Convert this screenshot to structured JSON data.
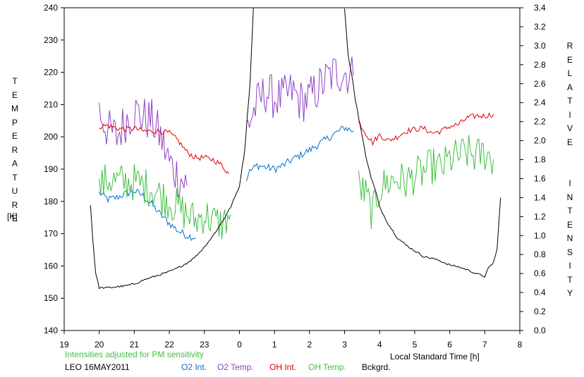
{
  "chart_data": {
    "type": "line",
    "left_axis": {
      "label": "TEMPERATURE",
      "unit": "[K]",
      "range": [
        140,
        240
      ],
      "ticks": [
        140,
        150,
        160,
        170,
        180,
        190,
        200,
        210,
        220,
        230,
        240
      ]
    },
    "right_axis": {
      "label": "RELATIVE INTENSITY",
      "range": [
        0.0,
        3.4
      ],
      "ticks": [
        "0.0",
        "0.2",
        "0.4",
        "0.6",
        "0.8",
        "1.0",
        "1.2",
        "1.4",
        "1.6",
        "1.8",
        "2.0",
        "2.2",
        "2.4",
        "2.6",
        "2.8",
        "3.0",
        "3.2",
        "3.4"
      ]
    },
    "x_axis": {
      "label": "Local Standard Time [h]",
      "range": [
        19,
        32
      ],
      "ticks": [
        "19",
        "20",
        "21",
        "22",
        "23",
        "0",
        "1",
        "2",
        "3",
        "4",
        "5",
        "6",
        "7",
        "8"
      ]
    },
    "note": "Intensities adjusted for PM sensitivity",
    "site_date": "LEO 16MAY2011",
    "grid": false,
    "legend_position": "bottom",
    "series": [
      {
        "name": "O2 Int.",
        "color": "#0070d0",
        "axis": "right",
        "segments": [
          {
            "x": [
              20.0,
              20.25,
              20.5,
              20.75,
              21.0,
              21.25,
              21.5,
              21.75,
              22.0,
              22.25,
              22.5,
              22.75
            ],
            "y": [
              1.45,
              1.38,
              1.4,
              1.44,
              1.47,
              1.42,
              1.33,
              1.22,
              1.13,
              1.05,
              1.0,
              0.98
            ]
          },
          {
            "x": [
              24.2,
              24.25,
              24.5,
              24.75,
              25.0,
              25.25,
              25.5,
              25.75,
              26.0,
              26.25,
              26.5,
              26.75,
              27.0,
              27.25
            ],
            "y": [
              1.58,
              1.66,
              1.74,
              1.72,
              1.7,
              1.74,
              1.8,
              1.85,
              1.9,
              1.96,
              2.02,
              2.08,
              2.14,
              2.1
            ]
          }
        ]
      },
      {
        "name": "O2 Temp.",
        "color": "#9040c8",
        "axis": "left",
        "segments": [
          {
            "x": [
              20.0,
              20.25,
              20.5,
              20.75,
              21.0,
              21.25,
              21.5,
              21.75,
              22.0,
              22.25,
              22.5
            ],
            "y": [
              208,
              202,
              200,
              205,
              208,
              206,
              205,
              200,
              192,
              188,
              185
            ]
          },
          {
            "x": [
              24.2,
              24.5,
              24.75,
              25.0,
              25.25,
              25.5,
              25.75,
              26.0,
              26.25,
              26.5,
              26.75,
              27.0,
              27.25
            ],
            "y": [
              203,
              210,
              214,
              212,
              212,
              214,
              211,
              212,
              215,
              218,
              220,
              220,
              219
            ]
          }
        ]
      },
      {
        "name": "OH Int.",
        "color": "#e00000",
        "axis": "right",
        "segments": [
          {
            "x": [
              20.0,
              20.25,
              20.5,
              20.75,
              21.0,
              21.25,
              21.5,
              21.75,
              22.0,
              22.25,
              22.5,
              22.75,
              23.0,
              23.25,
              23.5,
              23.7
            ],
            "y": [
              2.15,
              2.16,
              2.13,
              2.12,
              2.13,
              2.1,
              2.1,
              2.1,
              2.08,
              2.0,
              1.88,
              1.82,
              1.82,
              1.8,
              1.74,
              1.65
            ]
          },
          {
            "x": [
              27.4,
              27.6,
              27.8,
              28.0,
              28.25,
              28.5,
              28.75,
              29.0,
              29.25,
              29.5,
              29.75,
              30.0,
              30.25,
              30.5,
              30.75,
              31.0,
              31.25
            ],
            "y": [
              2.2,
              2.08,
              1.98,
              2.06,
              2.0,
              2.04,
              2.1,
              2.12,
              2.13,
              2.08,
              2.1,
              2.15,
              2.17,
              2.24,
              2.26,
              2.26,
              2.28
            ]
          }
        ]
      },
      {
        "name": "OH Temp.",
        "color": "#40c040",
        "axis": "left",
        "segments": [
          {
            "x": [
              20.0,
              20.25,
              20.5,
              20.75,
              21.0,
              21.25,
              21.5,
              21.75,
              22.0,
              22.25,
              22.5,
              22.75,
              23.0,
              23.25,
              23.5,
              23.75
            ],
            "y": [
              184,
              187,
              186,
              186,
              186,
              185,
              184,
              182,
              180,
              178,
              176,
              174,
              176,
              174,
              173,
              176
            ]
          },
          {
            "x": [
              27.4,
              27.6,
              27.8,
              28.0,
              28.25,
              28.5,
              28.75,
              29.0,
              29.25,
              29.5,
              29.75,
              30.0,
              30.25,
              30.5,
              30.75,
              31.0,
              31.25
            ],
            "y": [
              185,
              182,
              176,
              184,
              186,
              187,
              186,
              188,
              189,
              191,
              190,
              193,
              194,
              195,
              194,
              195,
              193
            ]
          }
        ]
      },
      {
        "name": "Bckgrd.",
        "color": "#000000",
        "axis": "right",
        "segments": [
          {
            "x": [
              19.75,
              19.82,
              19.9,
              20.0,
              20.25,
              20.5,
              20.75,
              21.0,
              21.25,
              21.5,
              21.75,
              22.0,
              22.25,
              22.5,
              22.75,
              23.0,
              23.25,
              23.5,
              23.75,
              24.0,
              24.15,
              24.3,
              24.4
            ],
            "y": [
              1.32,
              0.95,
              0.6,
              0.45,
              0.45,
              0.46,
              0.47,
              0.49,
              0.53,
              0.56,
              0.59,
              0.62,
              0.66,
              0.71,
              0.78,
              0.88,
              1.0,
              1.14,
              1.3,
              1.52,
              1.9,
              2.6,
              3.4
            ]
          },
          {
            "x": [
              27.0,
              27.1,
              27.2,
              27.3,
              27.45,
              27.6,
              27.75,
              27.9,
              28.0,
              28.25,
              28.5,
              28.75,
              29.0,
              29.25,
              29.5,
              29.75,
              30.0,
              30.25,
              30.5,
              30.75,
              31.0,
              31.1,
              31.25,
              31.35,
              31.45
            ],
            "y": [
              3.4,
              2.9,
              2.7,
              2.45,
              2.15,
              1.85,
              1.62,
              1.45,
              1.3,
              1.12,
              0.98,
              0.9,
              0.84,
              0.78,
              0.76,
              0.73,
              0.69,
              0.67,
              0.64,
              0.6,
              0.57,
              0.65,
              0.72,
              0.85,
              1.4
            ]
          }
        ]
      }
    ]
  }
}
